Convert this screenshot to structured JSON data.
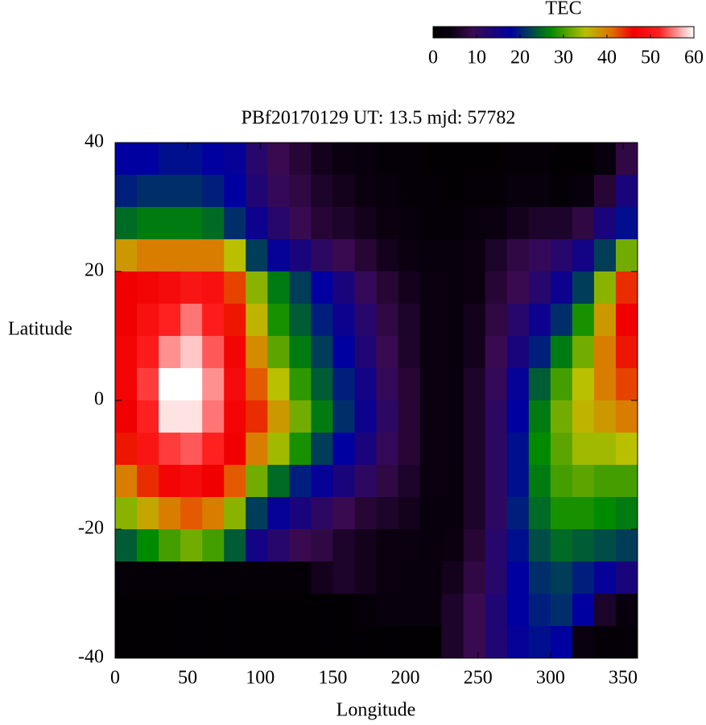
{
  "chart_data": {
    "type": "heatmap",
    "title": "PBf20170129  UT: 13.5  mjd: 57782",
    "xlabel": "Longitude",
    "ylabel": "Latitude",
    "x": [
      7.5,
      22.5,
      37.5,
      52.5,
      67.5,
      82.5,
      97.5,
      112.5,
      127.5,
      142.5,
      157.5,
      172.5,
      187.5,
      202.5,
      217.5,
      232.5,
      247.5,
      262.5,
      277.5,
      292.5,
      307.5,
      322.5,
      337.5,
      352.5
    ],
    "y": [
      37.5,
      32.5,
      27.5,
      22.5,
      17.5,
      12.5,
      7.5,
      2.5,
      -2.5,
      -7.5,
      -12.5,
      -17.5,
      -22.5,
      -27.5,
      -32.5,
      -37.5
    ],
    "values": [
      [
        18,
        18,
        19,
        19,
        18,
        17,
        12,
        9,
        7,
        5,
        4,
        3,
        2,
        2,
        1,
        1,
        1,
        1,
        2,
        2,
        1,
        1,
        3,
        8
      ],
      [
        20,
        21,
        21,
        21,
        20,
        18,
        13,
        10,
        8,
        6,
        5,
        4,
        3,
        2,
        2,
        1,
        2,
        2,
        3,
        3,
        2,
        3,
        7,
        14
      ],
      [
        25,
        26,
        26,
        26,
        25,
        21,
        16,
        12,
        9,
        7,
        6,
        5,
        4,
        3,
        2,
        2,
        3,
        4,
        5,
        6,
        6,
        8,
        14,
        19
      ],
      [
        38,
        40,
        40,
        40,
        40,
        35,
        22,
        17,
        14,
        11,
        9,
        7,
        5,
        4,
        3,
        3,
        4,
        6,
        8,
        10,
        12,
        15,
        22,
        32
      ],
      [
        46,
        47,
        48,
        50,
        49,
        43,
        33,
        26,
        22,
        18,
        14,
        10,
        7,
        5,
        4,
        3,
        4,
        7,
        9,
        12,
        16,
        22,
        33,
        44
      ],
      [
        46,
        49,
        52,
        55,
        51,
        45,
        36,
        28,
        24,
        20,
        16,
        12,
        8,
        6,
        4,
        3,
        5,
        8,
        12,
        16,
        21,
        28,
        38,
        46
      ],
      [
        47,
        51,
        56,
        58,
        54,
        47,
        39,
        31,
        26,
        22,
        18,
        13,
        9,
        6,
        4,
        3,
        5,
        9,
        14,
        20,
        26,
        32,
        40,
        45
      ],
      [
        47,
        53,
        60,
        60,
        56,
        48,
        42,
        35,
        29,
        24,
        20,
        15,
        10,
        7,
        4,
        3,
        6,
        10,
        17,
        24,
        30,
        35,
        40,
        43
      ],
      [
        46,
        52,
        59,
        59,
        55,
        47,
        44,
        38,
        32,
        26,
        21,
        16,
        11,
        7,
        4,
        3,
        6,
        11,
        18,
        26,
        32,
        36,
        38,
        40
      ],
      [
        45,
        50,
        53,
        54,
        52,
        46,
        40,
        34,
        28,
        22,
        18,
        14,
        10,
        7,
        4,
        3,
        6,
        11,
        19,
        27,
        31,
        34,
        34,
        35
      ],
      [
        40,
        44,
        47,
        48,
        46,
        42,
        32,
        25,
        20,
        17,
        14,
        11,
        8,
        6,
        4,
        3,
        6,
        11,
        19,
        26,
        30,
        31,
        30,
        30
      ],
      [
        33,
        37,
        40,
        42,
        40,
        33,
        22,
        17,
        14,
        11,
        9,
        7,
        6,
        5,
        3,
        3,
        6,
        11,
        20,
        25,
        28,
        28,
        27,
        26
      ],
      [
        24,
        27,
        30,
        32,
        30,
        24,
        15,
        12,
        9,
        8,
        6,
        5,
        4,
        4,
        3,
        4,
        7,
        12,
        19,
        23,
        25,
        24,
        23,
        22
      ],
      [
        2,
        2,
        2,
        2,
        2,
        2,
        2,
        2,
        2,
        5,
        6,
        5,
        4,
        3,
        3,
        5,
        8,
        12,
        18,
        21,
        22,
        20,
        17,
        14
      ],
      [
        1,
        1,
        1,
        1,
        1,
        1,
        1,
        1,
        1,
        1,
        1,
        2,
        3,
        3,
        3,
        6,
        9,
        13,
        18,
        20,
        21,
        18,
        6,
        3
      ],
      [
        1,
        1,
        1,
        1,
        1,
        1,
        1,
        1,
        1,
        1,
        1,
        1,
        1,
        1,
        1,
        6,
        9,
        13,
        17,
        19,
        18,
        4,
        2,
        2
      ]
    ],
    "xlim": [
      0,
      360
    ],
    "ylim": [
      -40,
      40
    ],
    "xticks": [
      0,
      50,
      100,
      150,
      200,
      250,
      300,
      350
    ],
    "yticks": [
      -40,
      -20,
      0,
      20,
      40
    ],
    "colorbar": {
      "label": "TEC",
      "lim": [
        0,
        60
      ],
      "ticks": [
        0,
        10,
        20,
        30,
        40,
        50,
        60
      ],
      "stops": [
        {
          "value": 0,
          "color": "#000000"
        },
        {
          "value": 4,
          "color": "#0a0010"
        },
        {
          "value": 9,
          "color": "#3a0a50"
        },
        {
          "value": 18,
          "color": "#0000a0"
        },
        {
          "value": 27,
          "color": "#008a00"
        },
        {
          "value": 35,
          "color": "#b8c000"
        },
        {
          "value": 41,
          "color": "#e07000"
        },
        {
          "value": 46,
          "color": "#f00000"
        },
        {
          "value": 52,
          "color": "#ff2020"
        },
        {
          "value": 60,
          "color": "#ffffff"
        }
      ]
    }
  }
}
